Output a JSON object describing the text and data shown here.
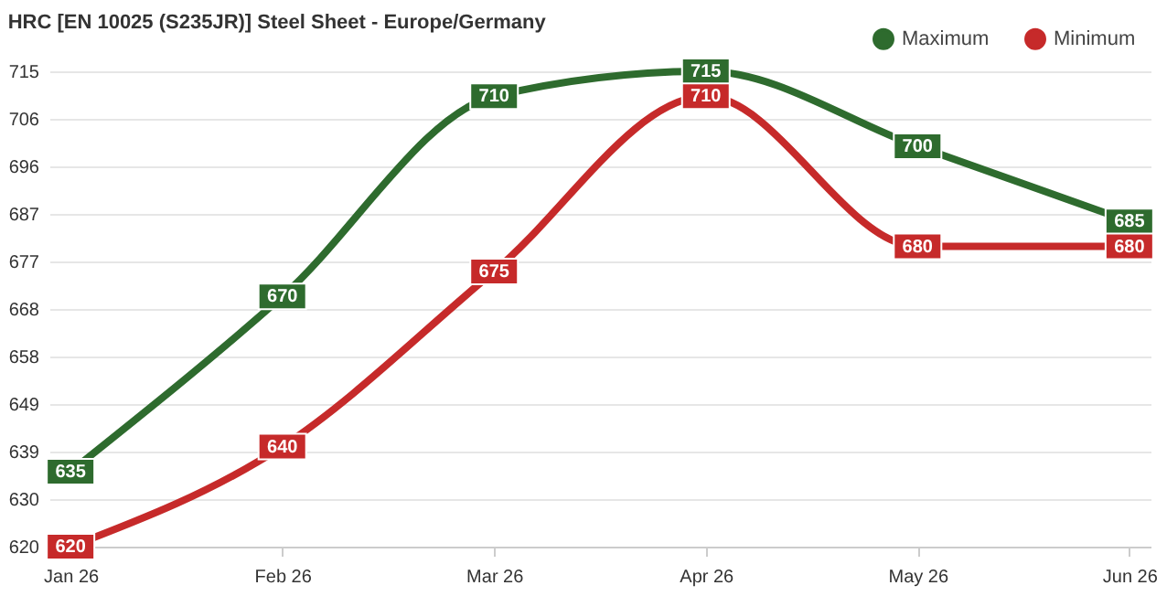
{
  "chart_data": {
    "type": "line",
    "title": "HRC [EN 10025 (S235JR)] Steel Sheet - Europe/Germany",
    "categories": [
      "Jan 26",
      "Feb 26",
      "Mar 26",
      "Apr 26",
      "May 26",
      "Jun 26"
    ],
    "series": [
      {
        "name": "Maximum",
        "color": "#2e6b2e",
        "values": [
          635,
          670,
          710,
          715,
          700,
          685
        ]
      },
      {
        "name": "Minimum",
        "color": "#c62a2a",
        "values": [
          620,
          640,
          675,
          710,
          680,
          680
        ]
      }
    ],
    "ylim": [
      620,
      715
    ],
    "yticks": [
      620,
      {
        "value": 629.5,
        "label": "630"
      },
      639,
      {
        "value": 648.5,
        "label": "649"
      },
      658,
      {
        "value": 667.5,
        "label": "668"
      },
      677,
      {
        "value": 686.5,
        "label": "687"
      },
      696,
      {
        "value": 705.5,
        "label": "706"
      },
      715
    ],
    "grid": "y",
    "legend": "top right",
    "data_labels": true,
    "marker": "square",
    "line_style": "solid"
  }
}
